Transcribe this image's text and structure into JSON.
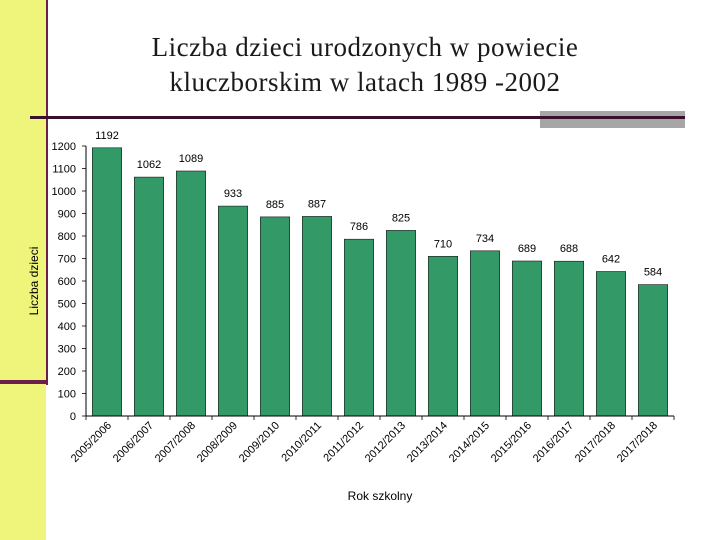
{
  "slide": {
    "title_line1": "Liczba dzieci urodzonych w powiecie",
    "title_line2": "kluczborskim w latach 1989 -2002"
  },
  "chart_data": {
    "type": "bar",
    "xlabel": "Rok szkolny",
    "ylabel": "Liczba dzieci",
    "ylim": [
      0,
      1200
    ],
    "yticks": [
      0,
      100,
      200,
      300,
      400,
      500,
      600,
      700,
      800,
      900,
      1000,
      1100,
      1200
    ],
    "grid": false,
    "legend": "none",
    "bar_color": "#339966",
    "categories": [
      "2005/2006",
      "2006/2007",
      "2007/2008",
      "2008/2009",
      "2009/2010",
      "2010/2011",
      "2011/2012",
      "2012/2013",
      "2013/2014",
      "2014/2015",
      "2015/2016",
      "2016/2017",
      "2017/2018",
      "2017/2018"
    ],
    "values": [
      1192,
      1062,
      1089,
      933,
      885,
      887,
      786,
      825,
      710,
      734,
      689,
      688,
      642,
      584
    ]
  }
}
